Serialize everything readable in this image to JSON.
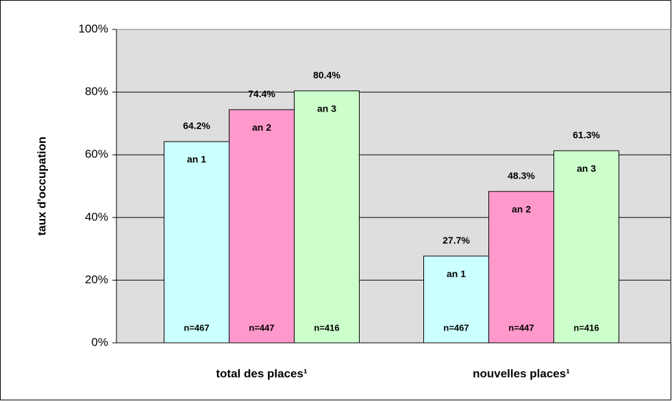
{
  "chart_data": {
    "type": "bar",
    "y_label": "taux d'occupation",
    "categories": [
      "total des places¹",
      "nouvelles places¹"
    ],
    "series": [
      {
        "name": "an 1",
        "color": "#ccffff",
        "values": [
          64.2,
          27.7
        ],
        "value_labels": [
          "64.2%",
          "27.7%"
        ],
        "counts": [
          "n=467",
          "n=467"
        ]
      },
      {
        "name": "an 2",
        "color": "#ff99cc",
        "values": [
          74.4,
          48.3
        ],
        "value_labels": [
          "74.4%",
          "48.3%"
        ],
        "counts": [
          "n=447",
          "n=447"
        ]
      },
      {
        "name": "an 3",
        "color": "#ccffcc",
        "values": [
          80.4,
          61.3
        ],
        "value_labels": [
          "80.4%",
          "61.3%"
        ],
        "counts": [
          "n=416",
          "n=416"
        ]
      }
    ],
    "ylim": [
      0,
      100
    ],
    "yticks": [
      {
        "value": 0,
        "label": "0%"
      },
      {
        "value": 20,
        "label": "20%"
      },
      {
        "value": 40,
        "label": "40%"
      },
      {
        "value": 60,
        "label": "60%"
      },
      {
        "value": 80,
        "label": "80%"
      },
      {
        "value": 100,
        "label": "100%"
      }
    ],
    "grid": true
  }
}
